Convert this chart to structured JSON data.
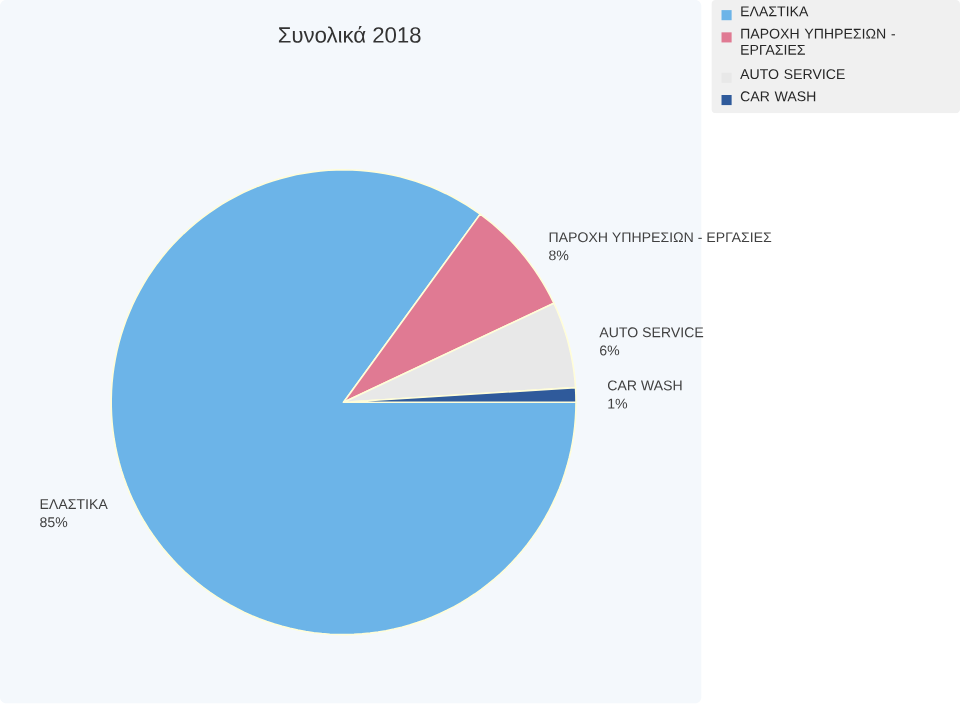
{
  "chart_data": {
    "type": "pie",
    "title": "Συνολικά 2018",
    "categories": [
      "ΕΛΑΣΤΙΚΑ",
      "ΠΑΡΟΧΗ ΥΠΗΡΕΣΙΩΝ - ΕΡΓΑΣΙΕΣ",
      "AUTO SERVICE",
      "CAR WASH"
    ],
    "values": [
      85,
      8,
      6,
      1
    ],
    "colors": [
      "#6cb4e8",
      "#e07a93",
      "#e8e8e8",
      "#2f5a9b"
    ],
    "value_labels": [
      "85%",
      "8%",
      "6%",
      "1%"
    ],
    "legend": "top right"
  }
}
